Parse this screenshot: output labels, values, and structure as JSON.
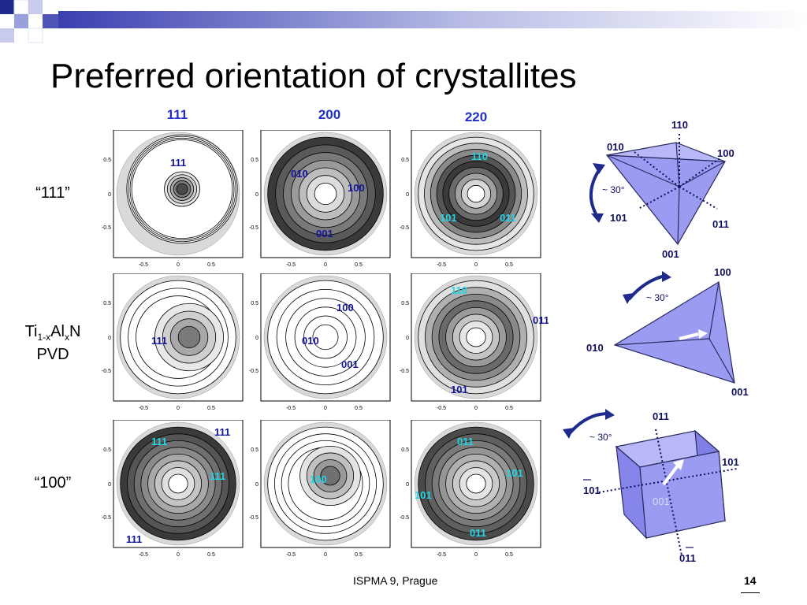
{
  "slide": {
    "title": "Preferred orientation of crystallites",
    "footer": "ISPMA 9, Prague",
    "page_number": "14"
  },
  "column_headers": [
    "111",
    "200",
    "220"
  ],
  "row_labels": {
    "row1": "“111”",
    "row2_main": "Ti",
    "row2_sub1": "1-x",
    "row2_al": "Al",
    "row2_sub2": "x",
    "row2_n": "N",
    "row2_line2": "PVD",
    "row3": "“100”"
  },
  "axis_ticks": [
    "-0.5",
    "0",
    "0.5"
  ],
  "pole_figures": {
    "r1c1": [
      "111"
    ],
    "r1c2": [
      "010",
      "100",
      "001"
    ],
    "r1c3": [
      "110",
      "101",
      "011"
    ],
    "r2c1": [
      "111"
    ],
    "r2c2": [
      "100",
      "010",
      "001"
    ],
    "r2c3": [
      "110",
      "011",
      "101"
    ],
    "r3c1": [
      "111",
      "111",
      "111",
      "111"
    ],
    "r3c2": [
      "100"
    ],
    "r3c3": [
      "011",
      "101",
      "101",
      "011"
    ]
  },
  "diagrams": {
    "d1": {
      "top": "110",
      "left": "010",
      "right": "100",
      "angle": "~ 30°",
      "lower_left": "101",
      "lower_right": "011",
      "bottom": "001"
    },
    "d2": {
      "top": "100",
      "angle": "~ 30°",
      "left": "010",
      "bottom": "001"
    },
    "d3": {
      "top": "011",
      "angle": "~ 30°",
      "right": "101",
      "left": "101",
      "center": "001",
      "bottom": "011"
    }
  },
  "colors": {
    "heading_blue": "#1f2fc8",
    "cyan_label": "#1fd6e6",
    "face_blue": "#9b9bf2",
    "accent_navy": "#1f2b8c"
  }
}
